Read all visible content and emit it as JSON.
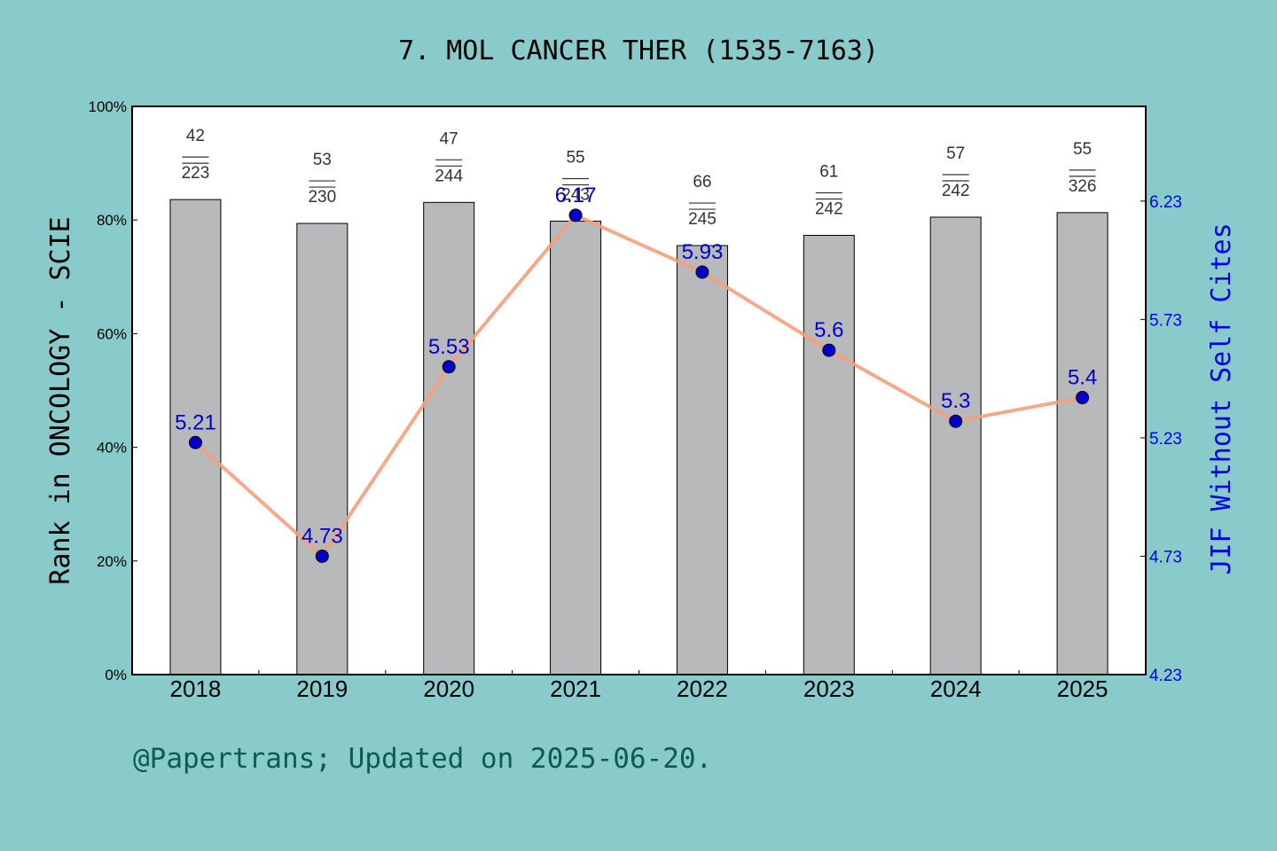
{
  "title": "7. MOL CANCER THER (1535-7163)",
  "footer": "@Papertrans; Updated on 2025-06-20.",
  "colors": {
    "background": "#88cbca",
    "bar": "#b8b9ba",
    "line": "#f4a07c",
    "marker": "#0000cc",
    "right_axis": "#0000ee"
  },
  "chart_data": {
    "type": "bar",
    "categories": [
      "2018",
      "2019",
      "2020",
      "2021",
      "2022",
      "2023",
      "2024",
      "2025"
    ],
    "ylabel": "Rank in ONCOLOGY - SCIE",
    "ylim": [
      0,
      100
    ],
    "y_ticks": [
      "0%",
      "20%",
      "40%",
      "60%",
      "80%",
      "100%"
    ],
    "y2label": "JIF Without Self Cites",
    "y2lim": [
      4.23,
      6.63
    ],
    "y2_ticks": [
      "4.23",
      "4.73",
      "5.23",
      "5.73",
      "6.23"
    ],
    "series": [
      {
        "type": "bar",
        "values": [
          83.6,
          79.4,
          83.1,
          79.8,
          75.5,
          77.3,
          80.5,
          81.3
        ],
        "rank": [
          "42",
          "53",
          "47",
          "55",
          "66",
          "61",
          "57",
          "55"
        ],
        "total": [
          "223",
          "230",
          "244",
          "243",
          "245",
          "242",
          "242",
          "326"
        ]
      },
      {
        "type": "line",
        "axis": "right",
        "values": [
          5.21,
          4.73,
          5.53,
          6.17,
          5.93,
          5.6,
          5.3,
          5.4
        ],
        "labels": [
          "5.21",
          "4.73",
          "5.53",
          "6.17",
          "5.93",
          "5.6",
          "5.3",
          "5.4"
        ]
      }
    ]
  }
}
